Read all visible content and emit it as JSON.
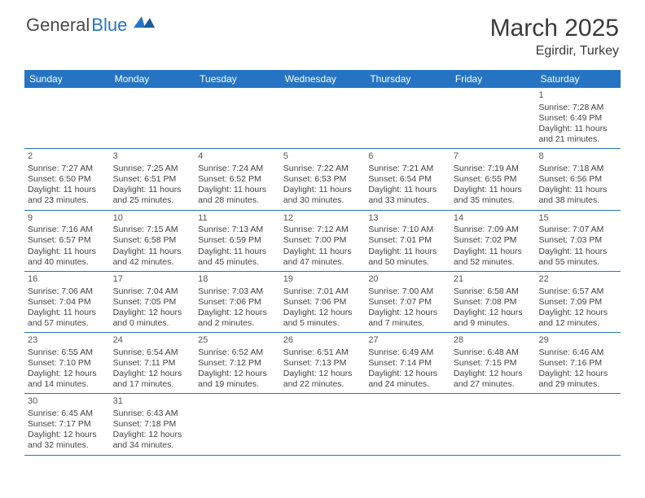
{
  "logo": {
    "text1": "General",
    "text2": "Blue"
  },
  "title": "March 2025",
  "location": "Egirdir, Turkey",
  "colors": {
    "header_bg": "#2574c4",
    "header_text": "#ffffff",
    "text": "#444444",
    "logo_gray": "#4a4a4a",
    "logo_blue": "#2574c4",
    "border": "#2574c4",
    "background": "#ffffff"
  },
  "typography": {
    "title_fontsize": 30,
    "location_fontsize": 16,
    "header_fontsize": 12,
    "cell_fontsize": 10.5,
    "logo_fontsize": 22
  },
  "day_names": [
    "Sunday",
    "Monday",
    "Tuesday",
    "Wednesday",
    "Thursday",
    "Friday",
    "Saturday"
  ],
  "weeks": [
    [
      null,
      null,
      null,
      null,
      null,
      null,
      {
        "n": "1",
        "sunrise": "Sunrise: 7:28 AM",
        "sunset": "Sunset: 6:49 PM",
        "daylight": "Daylight: 11 hours and 21 minutes."
      }
    ],
    [
      {
        "n": "2",
        "sunrise": "Sunrise: 7:27 AM",
        "sunset": "Sunset: 6:50 PM",
        "daylight": "Daylight: 11 hours and 23 minutes."
      },
      {
        "n": "3",
        "sunrise": "Sunrise: 7:25 AM",
        "sunset": "Sunset: 6:51 PM",
        "daylight": "Daylight: 11 hours and 25 minutes."
      },
      {
        "n": "4",
        "sunrise": "Sunrise: 7:24 AM",
        "sunset": "Sunset: 6:52 PM",
        "daylight": "Daylight: 11 hours and 28 minutes."
      },
      {
        "n": "5",
        "sunrise": "Sunrise: 7:22 AM",
        "sunset": "Sunset: 6:53 PM",
        "daylight": "Daylight: 11 hours and 30 minutes."
      },
      {
        "n": "6",
        "sunrise": "Sunrise: 7:21 AM",
        "sunset": "Sunset: 6:54 PM",
        "daylight": "Daylight: 11 hours and 33 minutes."
      },
      {
        "n": "7",
        "sunrise": "Sunrise: 7:19 AM",
        "sunset": "Sunset: 6:55 PM",
        "daylight": "Daylight: 11 hours and 35 minutes."
      },
      {
        "n": "8",
        "sunrise": "Sunrise: 7:18 AM",
        "sunset": "Sunset: 6:56 PM",
        "daylight": "Daylight: 11 hours and 38 minutes."
      }
    ],
    [
      {
        "n": "9",
        "sunrise": "Sunrise: 7:16 AM",
        "sunset": "Sunset: 6:57 PM",
        "daylight": "Daylight: 11 hours and 40 minutes."
      },
      {
        "n": "10",
        "sunrise": "Sunrise: 7:15 AM",
        "sunset": "Sunset: 6:58 PM",
        "daylight": "Daylight: 11 hours and 42 minutes."
      },
      {
        "n": "11",
        "sunrise": "Sunrise: 7:13 AM",
        "sunset": "Sunset: 6:59 PM",
        "daylight": "Daylight: 11 hours and 45 minutes."
      },
      {
        "n": "12",
        "sunrise": "Sunrise: 7:12 AM",
        "sunset": "Sunset: 7:00 PM",
        "daylight": "Daylight: 11 hours and 47 minutes."
      },
      {
        "n": "13",
        "sunrise": "Sunrise: 7:10 AM",
        "sunset": "Sunset: 7:01 PM",
        "daylight": "Daylight: 11 hours and 50 minutes."
      },
      {
        "n": "14",
        "sunrise": "Sunrise: 7:09 AM",
        "sunset": "Sunset: 7:02 PM",
        "daylight": "Daylight: 11 hours and 52 minutes."
      },
      {
        "n": "15",
        "sunrise": "Sunrise: 7:07 AM",
        "sunset": "Sunset: 7:03 PM",
        "daylight": "Daylight: 11 hours and 55 minutes."
      }
    ],
    [
      {
        "n": "16",
        "sunrise": "Sunrise: 7:06 AM",
        "sunset": "Sunset: 7:04 PM",
        "daylight": "Daylight: 11 hours and 57 minutes."
      },
      {
        "n": "17",
        "sunrise": "Sunrise: 7:04 AM",
        "sunset": "Sunset: 7:05 PM",
        "daylight": "Daylight: 12 hours and 0 minutes."
      },
      {
        "n": "18",
        "sunrise": "Sunrise: 7:03 AM",
        "sunset": "Sunset: 7:06 PM",
        "daylight": "Daylight: 12 hours and 2 minutes."
      },
      {
        "n": "19",
        "sunrise": "Sunrise: 7:01 AM",
        "sunset": "Sunset: 7:06 PM",
        "daylight": "Daylight: 12 hours and 5 minutes."
      },
      {
        "n": "20",
        "sunrise": "Sunrise: 7:00 AM",
        "sunset": "Sunset: 7:07 PM",
        "daylight": "Daylight: 12 hours and 7 minutes."
      },
      {
        "n": "21",
        "sunrise": "Sunrise: 6:58 AM",
        "sunset": "Sunset: 7:08 PM",
        "daylight": "Daylight: 12 hours and 9 minutes."
      },
      {
        "n": "22",
        "sunrise": "Sunrise: 6:57 AM",
        "sunset": "Sunset: 7:09 PM",
        "daylight": "Daylight: 12 hours and 12 minutes."
      }
    ],
    [
      {
        "n": "23",
        "sunrise": "Sunrise: 6:55 AM",
        "sunset": "Sunset: 7:10 PM",
        "daylight": "Daylight: 12 hours and 14 minutes."
      },
      {
        "n": "24",
        "sunrise": "Sunrise: 6:54 AM",
        "sunset": "Sunset: 7:11 PM",
        "daylight": "Daylight: 12 hours and 17 minutes."
      },
      {
        "n": "25",
        "sunrise": "Sunrise: 6:52 AM",
        "sunset": "Sunset: 7:12 PM",
        "daylight": "Daylight: 12 hours and 19 minutes."
      },
      {
        "n": "26",
        "sunrise": "Sunrise: 6:51 AM",
        "sunset": "Sunset: 7:13 PM",
        "daylight": "Daylight: 12 hours and 22 minutes."
      },
      {
        "n": "27",
        "sunrise": "Sunrise: 6:49 AM",
        "sunset": "Sunset: 7:14 PM",
        "daylight": "Daylight: 12 hours and 24 minutes."
      },
      {
        "n": "28",
        "sunrise": "Sunrise: 6:48 AM",
        "sunset": "Sunset: 7:15 PM",
        "daylight": "Daylight: 12 hours and 27 minutes."
      },
      {
        "n": "29",
        "sunrise": "Sunrise: 6:46 AM",
        "sunset": "Sunset: 7:16 PM",
        "daylight": "Daylight: 12 hours and 29 minutes."
      }
    ],
    [
      {
        "n": "30",
        "sunrise": "Sunrise: 6:45 AM",
        "sunset": "Sunset: 7:17 PM",
        "daylight": "Daylight: 12 hours and 32 minutes."
      },
      {
        "n": "31",
        "sunrise": "Sunrise: 6:43 AM",
        "sunset": "Sunset: 7:18 PM",
        "daylight": "Daylight: 12 hours and 34 minutes."
      },
      null,
      null,
      null,
      null,
      null
    ]
  ]
}
